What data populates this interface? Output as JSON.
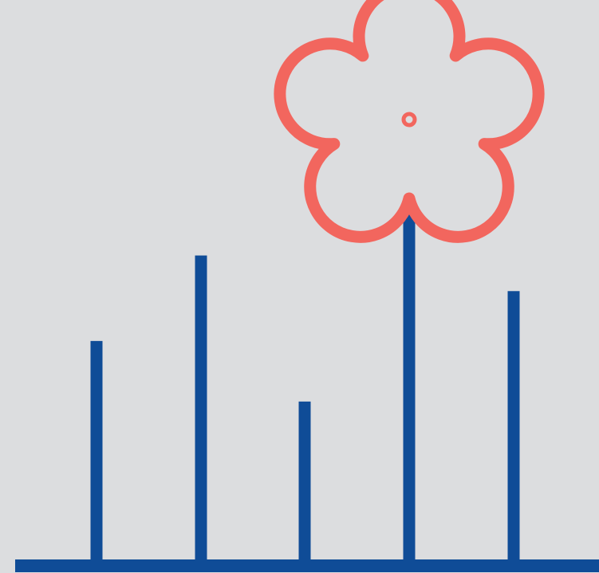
{
  "colors": {
    "background": "#DCDDDF",
    "stem": "#0F4C97",
    "flower": "#F2665E"
  },
  "icons": {
    "flower": "flower-outline-icon"
  },
  "stems": {
    "relative_heights": [
      0.62,
      0.86,
      0.45,
      1.0,
      0.76
    ],
    "flower_on_stem": 4
  }
}
